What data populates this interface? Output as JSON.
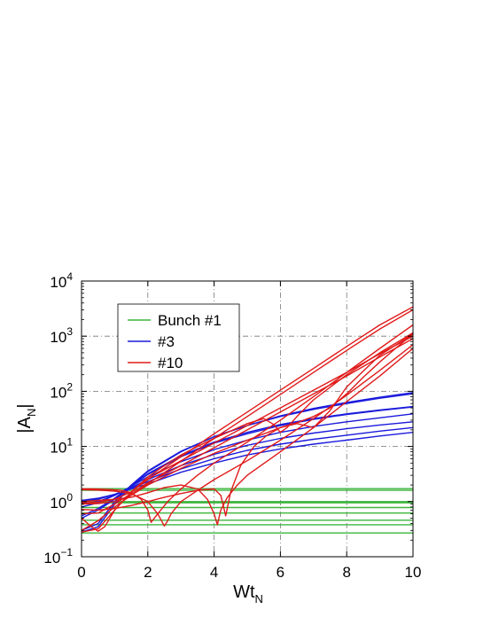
{
  "chart_data": {
    "type": "line",
    "xlabel": "Wt",
    "xlabel_sub": "N",
    "ylabel_pre": "|A",
    "ylabel_sub": "N",
    "ylabel_post": "|",
    "xlim": [
      0,
      10
    ],
    "ylim_log10": [
      -1,
      4
    ],
    "yscale": "log",
    "grid": true,
    "legend_position": "top-left",
    "x_ticks": [
      "0",
      "2",
      "4",
      "6",
      "8",
      "10"
    ],
    "y_ticks": [
      {
        "base": "10",
        "exp": "−1",
        "pow": -1
      },
      {
        "base": "10",
        "exp": "0",
        "pow": 0
      },
      {
        "base": "10",
        "exp": "1",
        "pow": 1
      },
      {
        "base": "10",
        "exp": "2",
        "pow": 2
      },
      {
        "base": "10",
        "exp": "3",
        "pow": 3
      },
      {
        "base": "10",
        "exp": "4",
        "pow": 4
      }
    ],
    "legend": [
      {
        "label": "Bunch #1",
        "color": "#3db53d"
      },
      {
        "label": "#3",
        "color": "#1a1adc"
      },
      {
        "label": "#10",
        "color": "#e01a1a"
      }
    ],
    "series": [
      {
        "group": "Bunch #1",
        "color": "#3db53d",
        "x": [
          0,
          10
        ],
        "y": [
          1.72,
          1.72
        ]
      },
      {
        "group": "Bunch #1",
        "color": "#3db53d",
        "x": [
          0,
          10
        ],
        "y": [
          1.6,
          1.6
        ]
      },
      {
        "group": "Bunch #1",
        "color": "#3db53d",
        "x": [
          0,
          10
        ],
        "y": [
          1.0,
          1.0
        ]
      },
      {
        "group": "Bunch #1",
        "color": "#3db53d",
        "x": [
          0,
          10
        ],
        "y": [
          0.95,
          0.95
        ]
      },
      {
        "group": "Bunch #1",
        "color": "#3db53d",
        "x": [
          0,
          10
        ],
        "y": [
          0.78,
          0.78
        ]
      },
      {
        "group": "Bunch #1",
        "color": "#3db53d",
        "x": [
          0,
          10
        ],
        "y": [
          0.62,
          0.62
        ]
      },
      {
        "group": "Bunch #1",
        "color": "#3db53d",
        "x": [
          0,
          10
        ],
        "y": [
          0.46,
          0.46
        ]
      },
      {
        "group": "Bunch #1",
        "color": "#3db53d",
        "x": [
          0,
          10
        ],
        "y": [
          0.38,
          0.38
        ]
      },
      {
        "group": "Bunch #1",
        "color": "#3db53d",
        "x": [
          0,
          10
        ],
        "y": [
          0.27,
          0.27
        ]
      },
      {
        "group": "#3",
        "color": "#1a1adc",
        "x": [
          0,
          0.5,
          1,
          1.5,
          2,
          3,
          4,
          5,
          6,
          7,
          8,
          9,
          10
        ],
        "y": [
          0.28,
          0.35,
          0.9,
          1.9,
          3.5,
          8,
          15,
          24,
          36,
          49,
          63,
          78,
          95
        ]
      },
      {
        "group": "#3",
        "color": "#1a1adc",
        "x": [
          0,
          0.5,
          1,
          1.5,
          2,
          3,
          4,
          5,
          6,
          7,
          8,
          9,
          10
        ],
        "y": [
          0.3,
          0.4,
          1.0,
          2.0,
          3.6,
          8.2,
          15,
          24,
          35,
          47,
          60,
          75,
          90
        ]
      },
      {
        "group": "#3",
        "color": "#1a1adc",
        "x": [
          0,
          0.5,
          1,
          1.5,
          2,
          3,
          4,
          5,
          6,
          7,
          8,
          9,
          10
        ],
        "y": [
          0.5,
          0.7,
          1.1,
          1.9,
          3.2,
          6.8,
          12,
          18,
          25,
          32,
          39,
          46,
          53
        ]
      },
      {
        "group": "#3",
        "color": "#1a1adc",
        "x": [
          0,
          0.5,
          1,
          1.5,
          2,
          3,
          4,
          5,
          6,
          7,
          8,
          9,
          10
        ],
        "y": [
          0.55,
          0.75,
          1.15,
          1.9,
          3.1,
          6.5,
          11.5,
          17,
          24,
          31,
          38,
          45,
          52
        ]
      },
      {
        "group": "#3",
        "color": "#1a1adc",
        "x": [
          0,
          0.5,
          1,
          1.5,
          2,
          3,
          4,
          5,
          6,
          7,
          8,
          9,
          10
        ],
        "y": [
          0.8,
          0.95,
          1.3,
          1.9,
          2.8,
          5.3,
          8.8,
          13,
          18,
          23,
          28,
          33,
          39
        ]
      },
      {
        "group": "#3",
        "color": "#1a1adc",
        "x": [
          0,
          0.5,
          1,
          1.5,
          2,
          3,
          4,
          5,
          6,
          7,
          8,
          9,
          10
        ],
        "y": [
          0.9,
          1.0,
          1.3,
          1.8,
          2.5,
          4.5,
          7.2,
          10.5,
          14,
          17.5,
          21,
          24.5,
          28
        ]
      },
      {
        "group": "#3",
        "color": "#1a1adc",
        "x": [
          0,
          0.5,
          1,
          1.5,
          2,
          3,
          4,
          5,
          6,
          7,
          8,
          9,
          10
        ],
        "y": [
          1.0,
          1.1,
          1.35,
          1.75,
          2.3,
          3.9,
          6.0,
          8.5,
          11,
          13.5,
          16,
          19,
          22
        ]
      },
      {
        "group": "#3",
        "color": "#1a1adc",
        "x": [
          0,
          0.5,
          1,
          1.5,
          2,
          3,
          4,
          5,
          6,
          7,
          8,
          9,
          10
        ],
        "y": [
          1.05,
          1.15,
          1.35,
          1.7,
          2.1,
          3.4,
          5.0,
          7.0,
          9.0,
          11,
          13,
          15.5,
          18
        ]
      },
      {
        "group": "#10",
        "color": "#e01a1a",
        "x": [
          0,
          0.5,
          1,
          1.5,
          2,
          3,
          4,
          5,
          6,
          7,
          8,
          9,
          10
        ],
        "y": [
          0.95,
          0.97,
          1.1,
          1.5,
          2.5,
          6.5,
          17,
          42,
          105,
          260,
          650,
          1600,
          3400
        ]
      },
      {
        "group": "#10",
        "color": "#e01a1a",
        "x": [
          0,
          0.5,
          1,
          1.5,
          2,
          3,
          4,
          5,
          6,
          7,
          8,
          9,
          10
        ],
        "y": [
          0.9,
          0.92,
          1.0,
          1.3,
          2.1,
          5.4,
          14,
          35,
          88,
          220,
          550,
          1350,
          3000
        ]
      },
      {
        "group": "#10",
        "color": "#e01a1a",
        "x": [
          0,
          0.5,
          1,
          1.5,
          2,
          3,
          4,
          5,
          6,
          7,
          8,
          9,
          10
        ],
        "y": [
          0.28,
          0.32,
          0.7,
          1.5,
          2.6,
          5.5,
          11.5,
          24,
          50,
          105,
          220,
          480,
          1000
        ]
      },
      {
        "group": "#10",
        "color": "#e01a1a",
        "x": [
          0,
          0.5,
          1,
          1.5,
          2,
          3,
          4,
          5,
          6,
          7,
          8,
          9,
          10
        ],
        "y": [
          0.6,
          0.62,
          0.9,
          1.4,
          2.2,
          4.5,
          9.5,
          20,
          42,
          90,
          190,
          420,
          900
        ]
      },
      {
        "group": "#10",
        "color": "#e01a1a",
        "x": [
          0,
          0.3,
          0.6,
          0.9,
          1.2,
          1.5,
          1.8,
          2.0,
          2.1,
          2.3,
          2.6,
          3.0,
          3.5,
          4.0,
          5.0,
          6.0,
          7.0,
          8.0,
          9.0,
          10.0
        ],
        "y": [
          1.7,
          1.7,
          1.68,
          1.65,
          1.6,
          1.45,
          1.1,
          0.7,
          0.42,
          0.6,
          1.0,
          1.7,
          3.0,
          5.0,
          12,
          30,
          80,
          220,
          600,
          1600
        ]
      },
      {
        "group": "#10",
        "color": "#e01a1a",
        "x": [
          0,
          0.5,
          1.0,
          1.5,
          2.0,
          2.3,
          2.5,
          2.6,
          2.7,
          3.0,
          3.5,
          4.0,
          5.0,
          6.0,
          7.0,
          8.0,
          9.0,
          10.0
        ],
        "y": [
          1.65,
          1.62,
          1.55,
          1.4,
          1.0,
          0.6,
          0.36,
          0.45,
          0.6,
          1.0,
          1.6,
          2.5,
          5.5,
          13,
          32,
          85,
          240,
          700
        ]
      },
      {
        "group": "#10",
        "color": "#e01a1a",
        "x": [
          0,
          0.5,
          1.0,
          1.5,
          2.0,
          2.5,
          3.0,
          3.5,
          3.8,
          4.0,
          4.1,
          4.2,
          4.4,
          4.7,
          5.0,
          6.0,
          7.0,
          8.0,
          9.0,
          10.0
        ],
        "y": [
          1.0,
          1.05,
          1.1,
          1.2,
          1.45,
          1.8,
          2.0,
          1.7,
          1.1,
          0.6,
          0.38,
          0.7,
          1.2,
          2.0,
          3.0,
          8,
          22,
          65,
          190,
          600
        ]
      },
      {
        "group": "#10",
        "color": "#e01a1a",
        "x": [
          0,
          0.5,
          1.0,
          1.5,
          2.0,
          2.5,
          3.0,
          3.5,
          4.0,
          4.2,
          4.35,
          4.5,
          4.8,
          5.2,
          5.6,
          6.0,
          6.5,
          7.0,
          7.5,
          8.0,
          8.5,
          9.0,
          9.5,
          10.0
        ],
        "y": [
          0.72,
          0.7,
          0.75,
          0.85,
          1.0,
          1.2,
          1.4,
          1.6,
          1.7,
          1.3,
          0.55,
          1.5,
          4.5,
          10,
          16,
          22,
          27,
          35,
          50,
          90,
          180,
          340,
          620,
          1100
        ]
      },
      {
        "group": "#10",
        "color": "#e01a1a",
        "x": [
          0,
          0.3,
          0.5,
          0.7,
          1.0,
          1.5,
          2.0,
          2.5,
          3.0,
          3.5,
          4.0,
          5.0,
          5.5,
          5.8,
          6.0,
          6.2,
          6.5,
          7.0,
          8.0,
          9.0,
          10.0
        ],
        "y": [
          0.5,
          0.35,
          0.29,
          0.35,
          0.7,
          1.5,
          2.8,
          4.5,
          7.0,
          10,
          14,
          26,
          32,
          25,
          18,
          22,
          35,
          70,
          200,
          500,
          1150
        ]
      },
      {
        "group": "#10",
        "color": "#e01a1a",
        "x": [
          0,
          0.5,
          1.0,
          1.5,
          2.0,
          3.0,
          4.0,
          5.0,
          6.0,
          6.5,
          7.0,
          7.5,
          8.0,
          9.0,
          10.0
        ],
        "y": [
          0.3,
          0.45,
          0.8,
          1.3,
          2.0,
          4.0,
          7.5,
          13,
          22,
          26,
          22,
          45,
          120,
          450,
          1100
        ]
      }
    ]
  }
}
